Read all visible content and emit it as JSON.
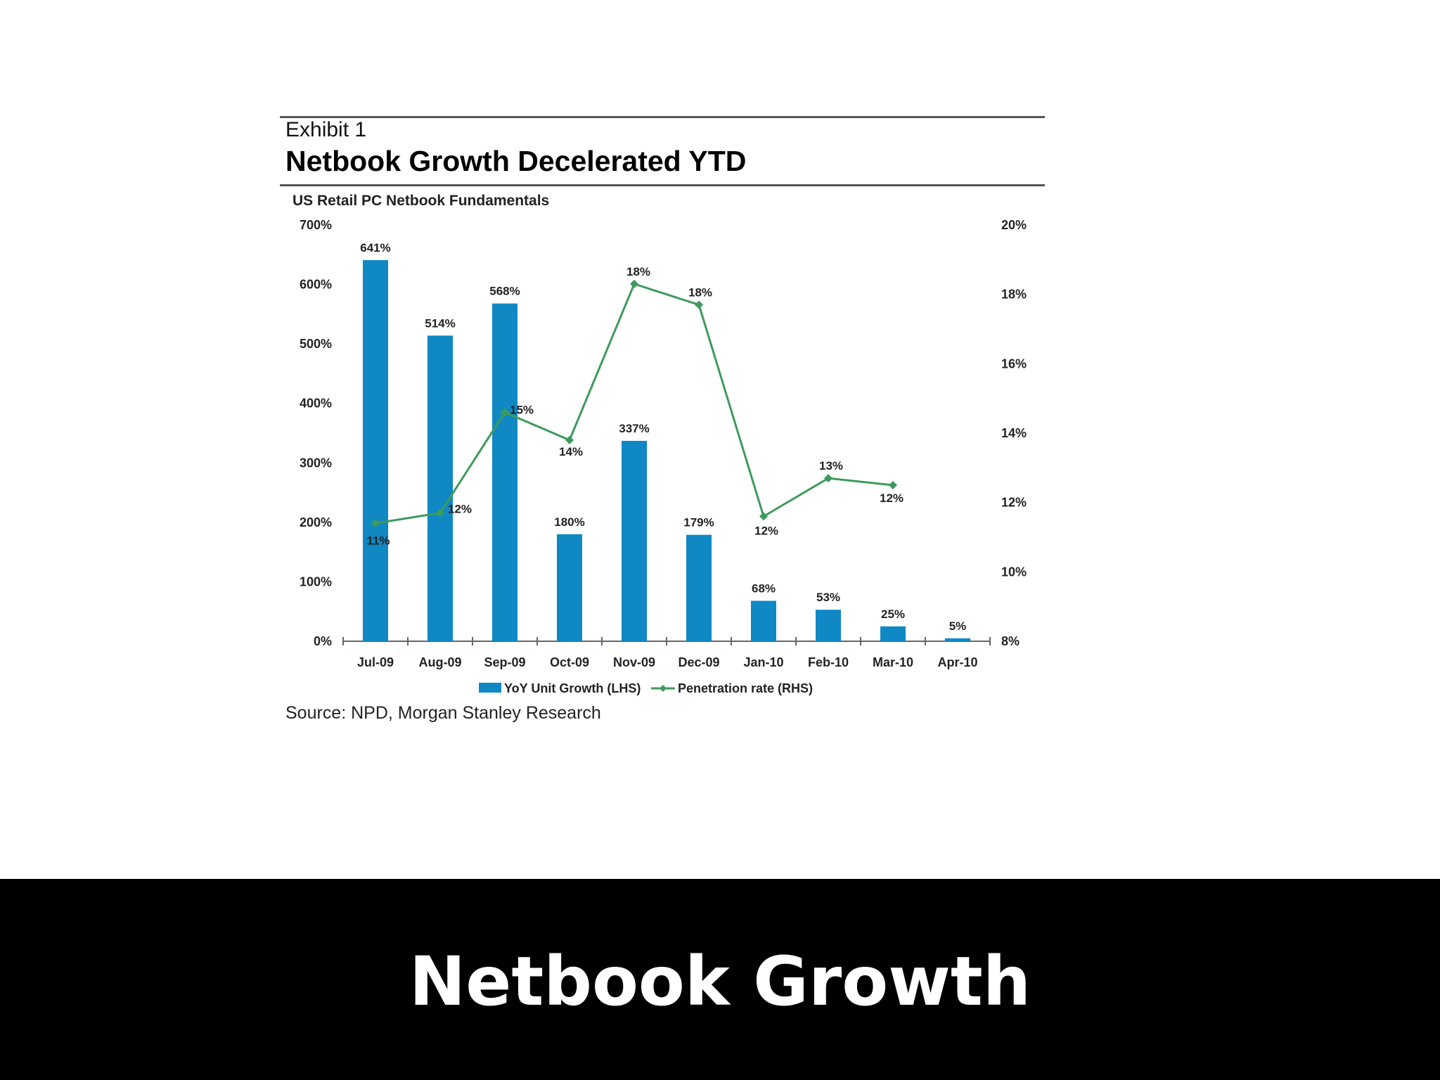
{
  "exhibit": {
    "label": "Exhibit 1",
    "title": "Netbook Growth Decelerated YTD",
    "source": "Source: NPD, Morgan Stanley Research"
  },
  "slide": {
    "title": "Netbook Growth"
  },
  "chart_data": {
    "type": "bar",
    "title": "US Retail PC Netbook Fundamentals",
    "categories": [
      "Jul-09",
      "Aug-09",
      "Sep-09",
      "Oct-09",
      "Nov-09",
      "Dec-09",
      "Jan-10",
      "Feb-10",
      "Mar-10",
      "Apr-10"
    ],
    "series": [
      {
        "name": "YoY Unit Growth (LHS)",
        "type": "bar",
        "axis": "left",
        "color": "#0f88c4",
        "values": [
          641,
          514,
          568,
          180,
          337,
          179,
          68,
          53,
          25,
          5
        ],
        "labels": [
          "641%",
          "514%",
          "568%",
          "180%",
          "337%",
          "179%",
          "68%",
          "53%",
          "25%",
          "5%"
        ]
      },
      {
        "name": "Penetration rate (RHS)",
        "type": "line",
        "axis": "right",
        "color": "#3e9a5c",
        "values": [
          11.4,
          11.7,
          14.6,
          13.8,
          18.3,
          17.7,
          11.6,
          12.7,
          12.5,
          null
        ],
        "labels": [
          "11%",
          "12%",
          "15%",
          "14%",
          "18%",
          "18%",
          "12%",
          "13%",
          "12%",
          ""
        ]
      }
    ],
    "y_left": {
      "min": 0,
      "max": 700,
      "ticks": [
        "0%",
        "100%",
        "200%",
        "300%",
        "400%",
        "500%",
        "600%",
        "700%"
      ]
    },
    "y_right": {
      "min": 8,
      "max": 20,
      "ticks": [
        "8%",
        "10%",
        "12%",
        "14%",
        "16%",
        "18%",
        "20%"
      ]
    },
    "grid": false,
    "legend": "bottom"
  }
}
